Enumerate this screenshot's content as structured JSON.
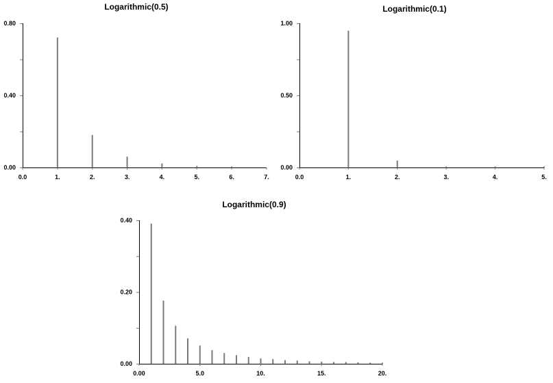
{
  "chart_data": [
    {
      "type": "bar",
      "title": "Logarithmic(0.5)",
      "xlabel": "",
      "ylabel": "",
      "xlim": [
        0,
        7
      ],
      "ylim": [
        0,
        0.8
      ],
      "x_tick_labels": [
        "0.0",
        "1.",
        "2.",
        "3.",
        "4.",
        "5.",
        "6.",
        "7."
      ],
      "y_tick_labels": [
        "0.80",
        "0.40",
        "0.00"
      ],
      "x": [
        1,
        2,
        3,
        4,
        5,
        6
      ],
      "values": [
        0.7213,
        0.1803,
        0.0601,
        0.0225,
        0.009,
        0.0038
      ],
      "color": "#7a7a7a"
    },
    {
      "type": "bar",
      "title": "Logarithmic(0.1)",
      "xlabel": "",
      "ylabel": "",
      "xlim": [
        0,
        5
      ],
      "ylim": [
        0,
        1.0
      ],
      "x_tick_labels": [
        "0.0",
        "1.",
        "2.",
        "3.",
        "4.",
        "5."
      ],
      "y_tick_labels": [
        "1.00",
        "0.50",
        "0.00"
      ],
      "x": [
        1,
        2,
        3,
        4,
        5
      ],
      "values": [
        0.9491,
        0.0475,
        0.0032,
        0.0002,
        0.0
      ],
      "color": "#7a7a7a"
    },
    {
      "type": "bar",
      "title": "Logarithmic(0.9)",
      "xlabel": "",
      "ylabel": "",
      "xlim": [
        0,
        20
      ],
      "ylim": [
        0,
        0.4
      ],
      "x_tick_labels": [
        "0.00",
        "5.0",
        "10.",
        "15.",
        "20."
      ],
      "y_tick_labels": [
        "0.40",
        "0.20",
        "0.00"
      ],
      "x": [
        1,
        2,
        3,
        4,
        5,
        6,
        7,
        8,
        9,
        10,
        11,
        12,
        13,
        14,
        15,
        16,
        17,
        18,
        19,
        20
      ],
      "values": [
        0.391,
        0.176,
        0.106,
        0.071,
        0.051,
        0.038,
        0.03,
        0.024,
        0.019,
        0.015,
        0.013,
        0.01,
        0.009,
        0.007,
        0.006,
        0.005,
        0.005,
        0.004,
        0.003,
        0.003
      ],
      "color": "#7a7a7a"
    }
  ]
}
